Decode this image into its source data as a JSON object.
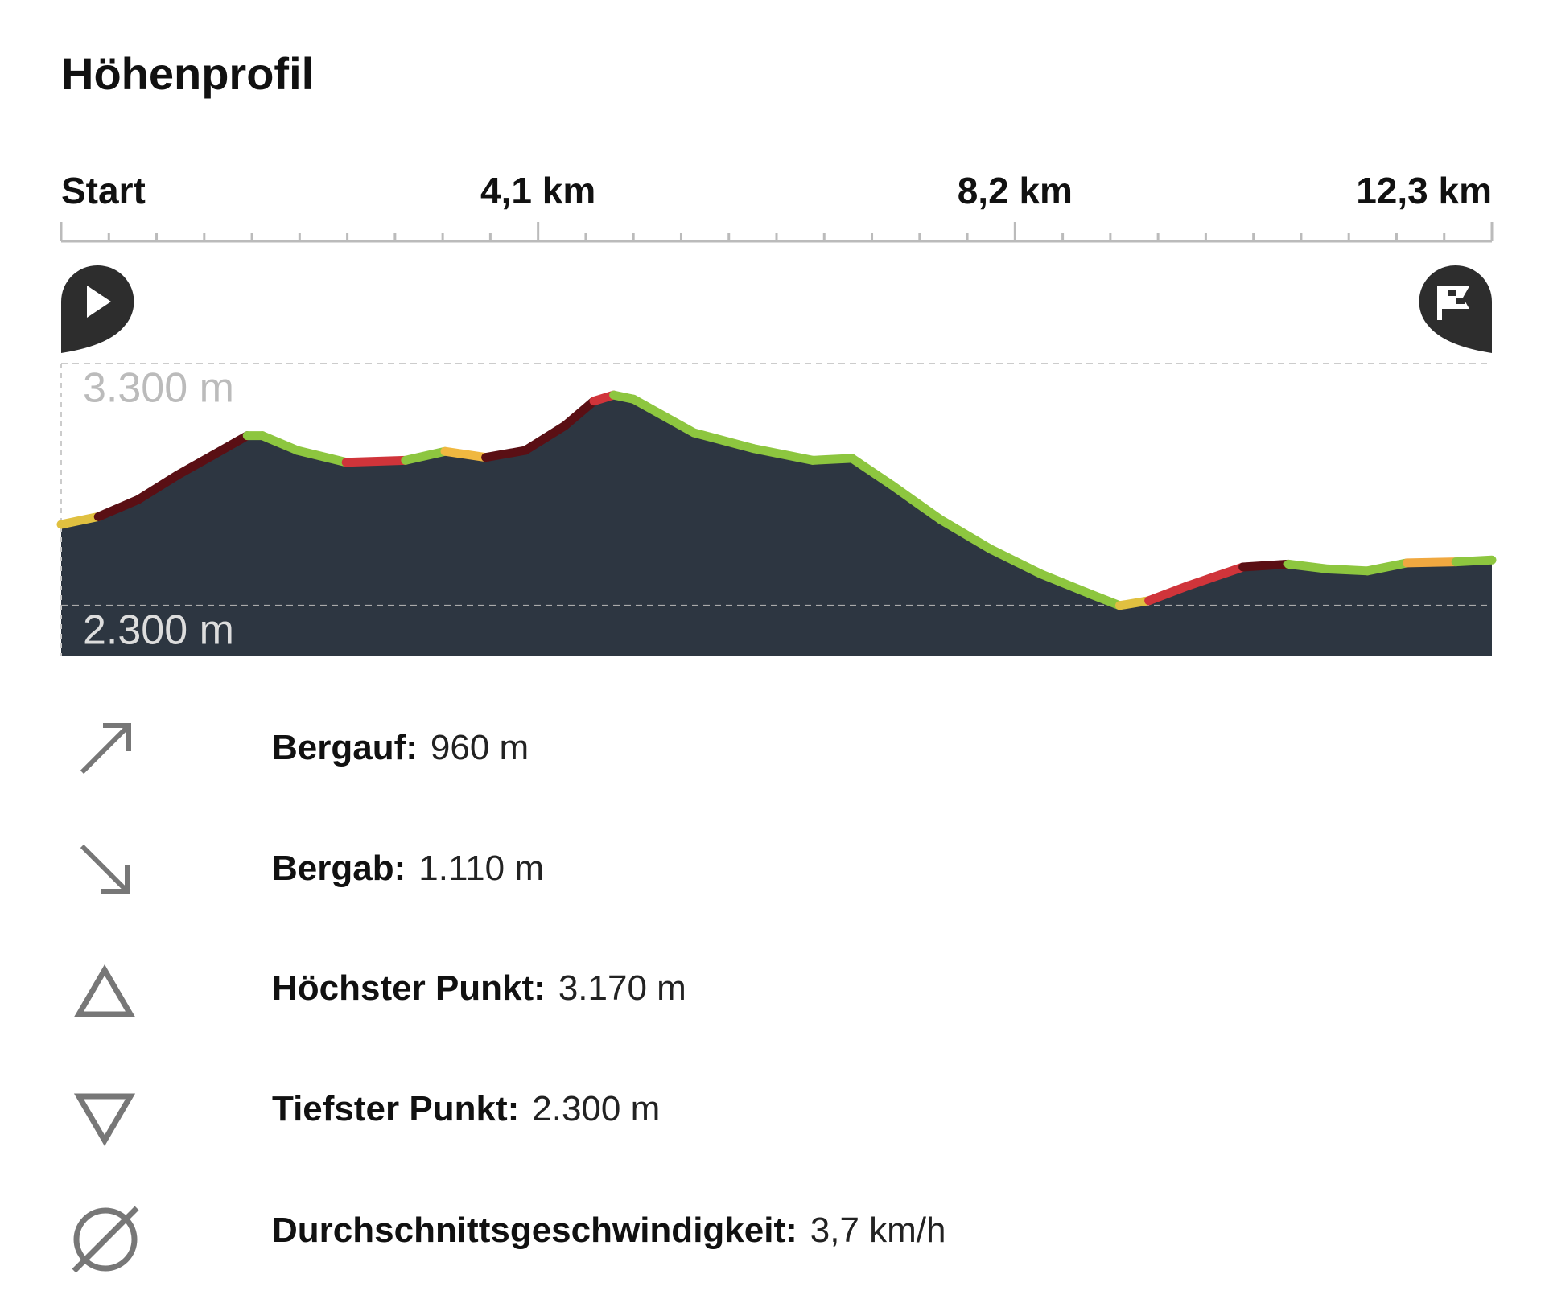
{
  "title": "Höhenprofil",
  "chart_data": {
    "type": "area",
    "x": [
      0,
      0.32,
      0.66,
      1.0,
      1.3,
      1.6,
      1.73,
      2.03,
      2.45,
      2.96,
      3.3,
      3.65,
      3.99,
      4.33,
      4.58,
      4.75,
      4.92,
      5.44,
      5.95,
      6.46,
      6.8,
      7.14,
      7.56,
      7.99,
      8.42,
      8.84,
      9.1,
      9.35,
      9.69,
      10.16,
      10.55,
      10.89,
      11.23,
      11.57,
      11.99,
      12.3
    ],
    "values": [
      2635,
      2667,
      2737,
      2839,
      2920,
      3002,
      3002,
      2941,
      2892,
      2900,
      2937,
      2912,
      2941,
      3043,
      3145,
      3170,
      3153,
      3014,
      2949,
      2900,
      2908,
      2798,
      2655,
      2533,
      2431,
      2349,
      2300,
      2320,
      2382,
      2459,
      2471,
      2451,
      2443,
      2476,
      2480,
      2488
    ],
    "segment_colors": [
      "#e0c040",
      "#5a0f14",
      "#5a0f14",
      "#5a0f14",
      "#5a0f14",
      "#8dc63f",
      "#8dc63f",
      "#8dc63f",
      "#d0343a",
      "#8dc63f",
      "#f0b840",
      "#5a0f14",
      "#5a0f14",
      "#5a0f14",
      "#d0343a",
      "#8dc63f",
      "#8dc63f",
      "#8dc63f",
      "#8dc63f",
      "#8dc63f",
      "#8dc63f",
      "#8dc63f",
      "#8dc63f",
      "#8dc63f",
      "#8dc63f",
      "#8dc63f",
      "#e0c040",
      "#d0343a",
      "#d0343a",
      "#5a0f14",
      "#8dc63f",
      "#8dc63f",
      "#8dc63f",
      "#f0a840",
      "#8dc63f"
    ],
    "area_color": "#2d3641",
    "xlim": [
      0,
      12.3
    ],
    "xticks": [
      {
        "value": 0,
        "label": "Start"
      },
      {
        "value": 4.1,
        "label": "4,1 km"
      },
      {
        "value": 8.2,
        "label": "8,2 km"
      },
      {
        "value": 12.3,
        "label": "12,3 km"
      }
    ],
    "xminorticks": [
      0.41,
      0.82,
      1.23,
      1.64,
      2.05,
      2.46,
      2.87,
      3.28,
      3.69,
      4.51,
      4.92,
      5.33,
      5.74,
      6.15,
      6.56,
      6.97,
      7.38,
      7.79,
      8.61,
      9.02,
      9.43,
      9.84,
      10.25,
      10.66,
      11.07,
      11.48,
      11.89
    ],
    "ylim": [
      2090,
      3300
    ],
    "yticks": [
      {
        "value": 3300,
        "label": "3.300 m"
      },
      {
        "value": 2300,
        "label": "2.300 m"
      }
    ]
  },
  "stats": [
    {
      "label": "Bergauf:",
      "value": "960 m"
    },
    {
      "label": "Bergab:",
      "value": "1.110 m"
    },
    {
      "label": "Höchster Punkt:",
      "value": "3.170 m"
    },
    {
      "label": "Tiefster Punkt:",
      "value": "2.300 m"
    },
    {
      "label": "Durchschnittsgeschwindigkeit:",
      "value": "3,7 km/h"
    }
  ]
}
